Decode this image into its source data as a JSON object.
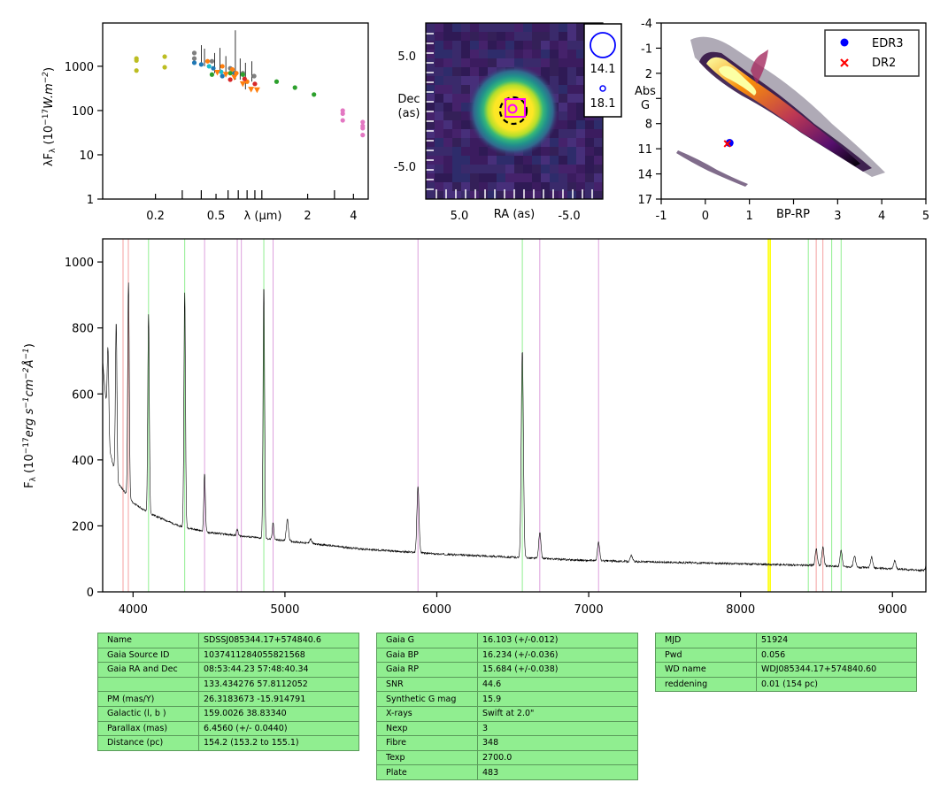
{
  "chart_data": [
    {
      "type": "scatter",
      "panel": "sed",
      "xlabel": "λ (μm)",
      "ylabel": "λF_λ (10^-17 W.m^-2)",
      "xscale": "log",
      "yscale": "log",
      "xticks": [
        "0.2",
        "0.5",
        "2",
        "4"
      ],
      "yticks": [
        "1",
        "10",
        "100",
        "1000"
      ],
      "series": [
        {
          "color": "#bcbd22",
          "points": [
            [
              0.15,
              1500
            ],
            [
              0.15,
              1350
            ],
            [
              0.15,
              800
            ],
            [
              0.23,
              1650
            ],
            [
              0.23,
              950
            ]
          ]
        },
        {
          "color": "#7f7f7f",
          "points": [
            [
              0.36,
              2000
            ],
            [
              0.36,
              1500
            ],
            [
              0.47,
              1300
            ],
            [
              0.62,
              900
            ],
            [
              0.75,
              700
            ],
            [
              0.89,
              600
            ]
          ]
        },
        {
          "color": "#1f77b4",
          "points": [
            [
              0.36,
              1200
            ],
            [
              0.4,
              1100
            ],
            [
              0.48,
              900
            ],
            [
              0.55,
              600
            ],
            [
              0.66,
              700
            ]
          ]
        },
        {
          "color": "#ff7f0e",
          "points": [
            [
              0.44,
              1300
            ],
            [
              0.55,
              1000
            ],
            [
              0.64,
              850
            ],
            [
              0.8,
              450
            ],
            [
              0.68,
              700
            ]
          ]
        },
        {
          "color": "#17becf",
          "points": [
            [
              0.45,
              1000
            ],
            [
              0.54,
              750
            ]
          ]
        },
        {
          "color": "#d62728",
          "points": [
            [
              0.62,
              500
            ],
            [
              0.77,
              520
            ],
            [
              0.9,
              400
            ]
          ]
        },
        {
          "color": "#2ca02c",
          "points": [
            [
              0.47,
              650
            ],
            [
              0.62,
              700
            ],
            [
              0.75,
              650
            ],
            [
              1.25,
              450
            ],
            [
              1.65,
              330
            ],
            [
              2.2,
              230
            ]
          ]
        },
        {
          "color": "#e377c2",
          "points": [
            [
              3.4,
              100
            ],
            [
              3.4,
              85
            ],
            [
              3.4,
              60
            ],
            [
              4.6,
              55
            ],
            [
              4.6,
              45
            ],
            [
              4.6,
              40
            ],
            [
              4.6,
              28
            ]
          ]
        }
      ],
      "triangles": {
        "color": "#ff7f0e",
        "points": [
          [
            0.51,
            720
          ],
          [
            0.58,
            650
          ],
          [
            0.66,
            560
          ],
          [
            0.75,
            400
          ],
          [
            0.85,
            300
          ],
          [
            0.93,
            290
          ]
        ]
      }
    },
    {
      "type": "heatmap",
      "panel": "image",
      "xlabel": "RA (as)",
      "ylabel": "Dec (as)",
      "xticks": [
        "5.0",
        "-5.0"
      ],
      "yticks": [
        "5.0",
        "-5.0"
      ],
      "legend": {
        "items": [
          "14.1",
          "18.1"
        ],
        "placement": "top-right"
      }
    },
    {
      "type": "scatter",
      "panel": "hr",
      "xlabel": "BP-RP",
      "ylabel": "Abs G",
      "xlim": [
        -1,
        5
      ],
      "ylim": [
        17,
        -4
      ],
      "xticks": [
        "-1",
        "0",
        "1",
        "2",
        "3",
        "4",
        "5"
      ],
      "yticks": [
        "-4",
        "-1",
        "2",
        "5",
        "8",
        "11",
        "14",
        "17"
      ],
      "legend": {
        "placement": "top-right",
        "items": [
          {
            "name": "EDR3",
            "marker": "dot",
            "color": "#0000ff"
          },
          {
            "name": "DR2",
            "marker": "x",
            "color": "#ff0000"
          }
        ]
      },
      "points": {
        "EDR3": [
          0.55,
          10.3
        ],
        "DR2": [
          0.5,
          10.4
        ]
      }
    },
    {
      "type": "line",
      "panel": "spectrum",
      "xlabel": "",
      "ylabel": "F_λ (10^-17 erg s^-1 cm^-2 Å^-1)",
      "xlim": [
        3800,
        9220
      ],
      "ylim": [
        0,
        1070
      ],
      "xticks": [
        "4000",
        "5000",
        "6000",
        "7000",
        "8000",
        "9000"
      ],
      "yticks": [
        "0",
        "200",
        "400",
        "600",
        "800",
        "1000"
      ],
      "continuum": [
        [
          3800,
          700
        ],
        [
          3850,
          420
        ],
        [
          3900,
          330
        ],
        [
          4000,
          270
        ],
        [
          4100,
          240
        ],
        [
          4300,
          200
        ],
        [
          4500,
          180
        ],
        [
          4800,
          165
        ],
        [
          5000,
          155
        ],
        [
          5500,
          130
        ],
        [
          6000,
          115
        ],
        [
          6500,
          105
        ],
        [
          7000,
          95
        ],
        [
          7500,
          90
        ],
        [
          8000,
          85
        ],
        [
          8500,
          80
        ],
        [
          9000,
          70
        ],
        [
          9220,
          65
        ]
      ],
      "emission_lines": [
        [
          3835,
          740
        ],
        [
          3889,
          820
        ],
        [
          3970,
          940
        ],
        [
          4102,
          840
        ],
        [
          4340,
          910
        ],
        [
          4471,
          360
        ],
        [
          4686,
          190
        ],
        [
          4861,
          930
        ],
        [
          4922,
          210
        ],
        [
          5016,
          220
        ],
        [
          5169,
          160
        ],
        [
          5876,
          320
        ],
        [
          6563,
          730
        ],
        [
          6678,
          180
        ],
        [
          7065,
          150
        ],
        [
          7281,
          110
        ],
        [
          8498,
          130
        ],
        [
          8542,
          135
        ],
        [
          8662,
          125
        ],
        [
          8750,
          110
        ],
        [
          8863,
          105
        ],
        [
          9015,
          95
        ],
        [
          9229,
          110
        ]
      ],
      "vlines": {
        "red": [
          3934,
          3969,
          8498,
          8542
        ],
        "green": [
          4102,
          4340,
          4861,
          6563,
          8446,
          8600,
          8662
        ],
        "violet": [
          4471,
          4686,
          4713,
          4922,
          5876,
          6678,
          7065
        ],
        "yellow": [
          8183,
          8195
        ]
      }
    }
  ],
  "tables": [
    {
      "rows": [
        [
          "Name",
          "SDSSJ085344.17+574840.6"
        ],
        [
          "Gaia Source ID",
          "1037411284055821568"
        ],
        [
          "Gaia RA and Dec",
          "08:53:44.23    57:48:40.34"
        ],
        [
          "",
          "133.434276    57.8112052"
        ],
        [
          "PM (mas/Y)",
          "26.3183673    -15.914791"
        ],
        [
          "Galactic (l, b )",
          "159.0026    38.83340"
        ],
        [
          "Parallax (mas)",
          "6.4560 (+/- 0.0440)"
        ],
        [
          "Distance (pc)",
          "154.2 (153.2 to 155.1)"
        ]
      ]
    },
    {
      "rows": [
        [
          "Gaia G",
          "16.103 (+/-0.012)"
        ],
        [
          "Gaia BP",
          "16.234 (+/-0.036)"
        ],
        [
          "Gaia RP",
          "15.684 (+/-0.038)"
        ],
        [
          "SNR",
          "44.6"
        ],
        [
          "Synthetic G mag",
          "15.9"
        ],
        [
          "X-rays",
          "Swift at 2.0\""
        ],
        [
          "Nexp",
          "3"
        ],
        [
          "Fibre",
          "348"
        ],
        [
          "Texp",
          "2700.0"
        ],
        [
          "Plate",
          "483"
        ]
      ]
    },
    {
      "rows": [
        [
          "MJD",
          "51924"
        ],
        [
          "Pwd",
          "0.056"
        ],
        [
          "WD name",
          "WDJ085344.17+574840.60"
        ],
        [
          "reddening",
          "0.01 (154 pc)"
        ]
      ]
    }
  ]
}
